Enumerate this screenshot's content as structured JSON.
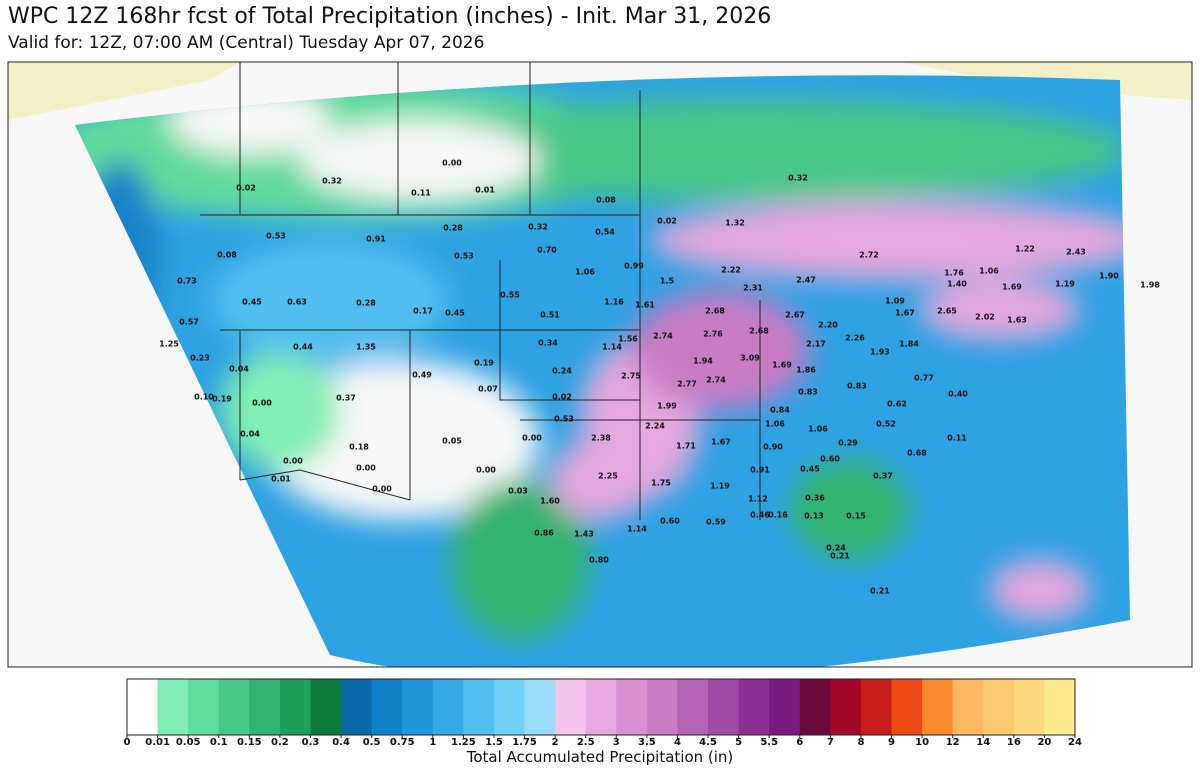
{
  "header": {
    "title": "WPC 12Z 168hr fcst of Total Precipitation (inches) - Init. Mar 31, 2026",
    "subtitle": "Valid for: 12Z, 07:00 AM (Central) Tuesday Apr 07, 2026"
  },
  "map_labels": [
    "0.00",
    "0.02",
    "0.32",
    "0.11",
    "0.01",
    "0.08",
    "0.32",
    "0.02",
    "1.32",
    "0.32",
    "0.54",
    "0.28",
    "0.91",
    "0.53",
    "0.08",
    "0.70",
    "0.53",
    "1.06",
    "0.99",
    "2.22",
    "1.5",
    "2.31",
    "2.47",
    "2.72",
    "1.76",
    "1.40",
    "1.06",
    "1.69",
    "1.22",
    "2.43",
    "1.90",
    "1.98",
    "1.19",
    "0.73",
    "0.45",
    "0.63",
    "0.28",
    "0.17",
    "0.45",
    "0.55",
    "1.16",
    "1.61",
    "2.68",
    "2.67",
    "1.09",
    "1.67",
    "2.65",
    "2.02",
    "1.63",
    "2.20",
    "0.57",
    "0.51",
    "2.74",
    "2.76",
    "2.68",
    "2.26",
    "2.17",
    "1.84",
    "1.25",
    "0.44",
    "1.35",
    "0.34",
    "1.14",
    "1.56",
    "0.23",
    "0.04",
    "1.94",
    "3.09",
    "1.69",
    "1.86",
    "1.93",
    "0.19",
    "0.24",
    "2.75",
    "2.77",
    "2.74",
    "0.49",
    "0.07",
    "0.02",
    "0.83",
    "0.83",
    "0.77",
    "0.40",
    "0.37",
    "0.10",
    "0.19",
    "0.00",
    "1.99",
    "0.84",
    "0.62",
    "0.04",
    "0.53",
    "2.24",
    "1.06",
    "1.06",
    "0.52",
    "0.11",
    "0.00",
    "2.38",
    "0.05",
    "1.71",
    "1.67",
    "0.90",
    "0.29",
    "0.18",
    "0.00",
    "0.00",
    "0.00",
    "0.60",
    "0.68",
    "0.91",
    "0.45",
    "2.25",
    "0.37",
    "1.75",
    "1.19",
    "0.01",
    "0.00",
    "0.03",
    "1.60",
    "1.12",
    "0.36",
    "0.15",
    "0.16",
    "0.13",
    "0.46",
    "1.43",
    "1.14",
    "0.60",
    "0.59",
    "0.86",
    "0.24",
    "0.21",
    "0.80",
    "0.21"
  ],
  "colorbar": {
    "label": "Total Accumulated Precipitation (in)",
    "ticks": [
      "0",
      "0.01",
      "0.05",
      "0.1",
      "0.15",
      "0.2",
      "0.3",
      "0.4",
      "0.5",
      "0.75",
      "1",
      "1.25",
      "1.5",
      "1.75",
      "2",
      "2.5",
      "3",
      "3.5",
      "4",
      "4.5",
      "5",
      "5.5",
      "6",
      "7",
      "8",
      "9",
      "10",
      "12",
      "14",
      "16",
      "20",
      "24"
    ],
    "colors": [
      "#ffffff",
      "#80eeb4",
      "#60dc9c",
      "#46c886",
      "#30b470",
      "#1ea05a",
      "#0e7a3c",
      "#0a6aa8",
      "#1282c8",
      "#2196d8",
      "#36aae6",
      "#50beee",
      "#70d0f6",
      "#98dcf8",
      "#f4c4ec",
      "#e6a8de",
      "#d890d2",
      "#c87cc6",
      "#b464b4",
      "#a04ca4",
      "#8c3094",
      "#781a80",
      "#6a0a38",
      "#a00a28",
      "#c81e1e",
      "#f04a14",
      "#f88a30",
      "#fbb860",
      "#fcc870",
      "#fdd880",
      "#fee890"
    ]
  }
}
